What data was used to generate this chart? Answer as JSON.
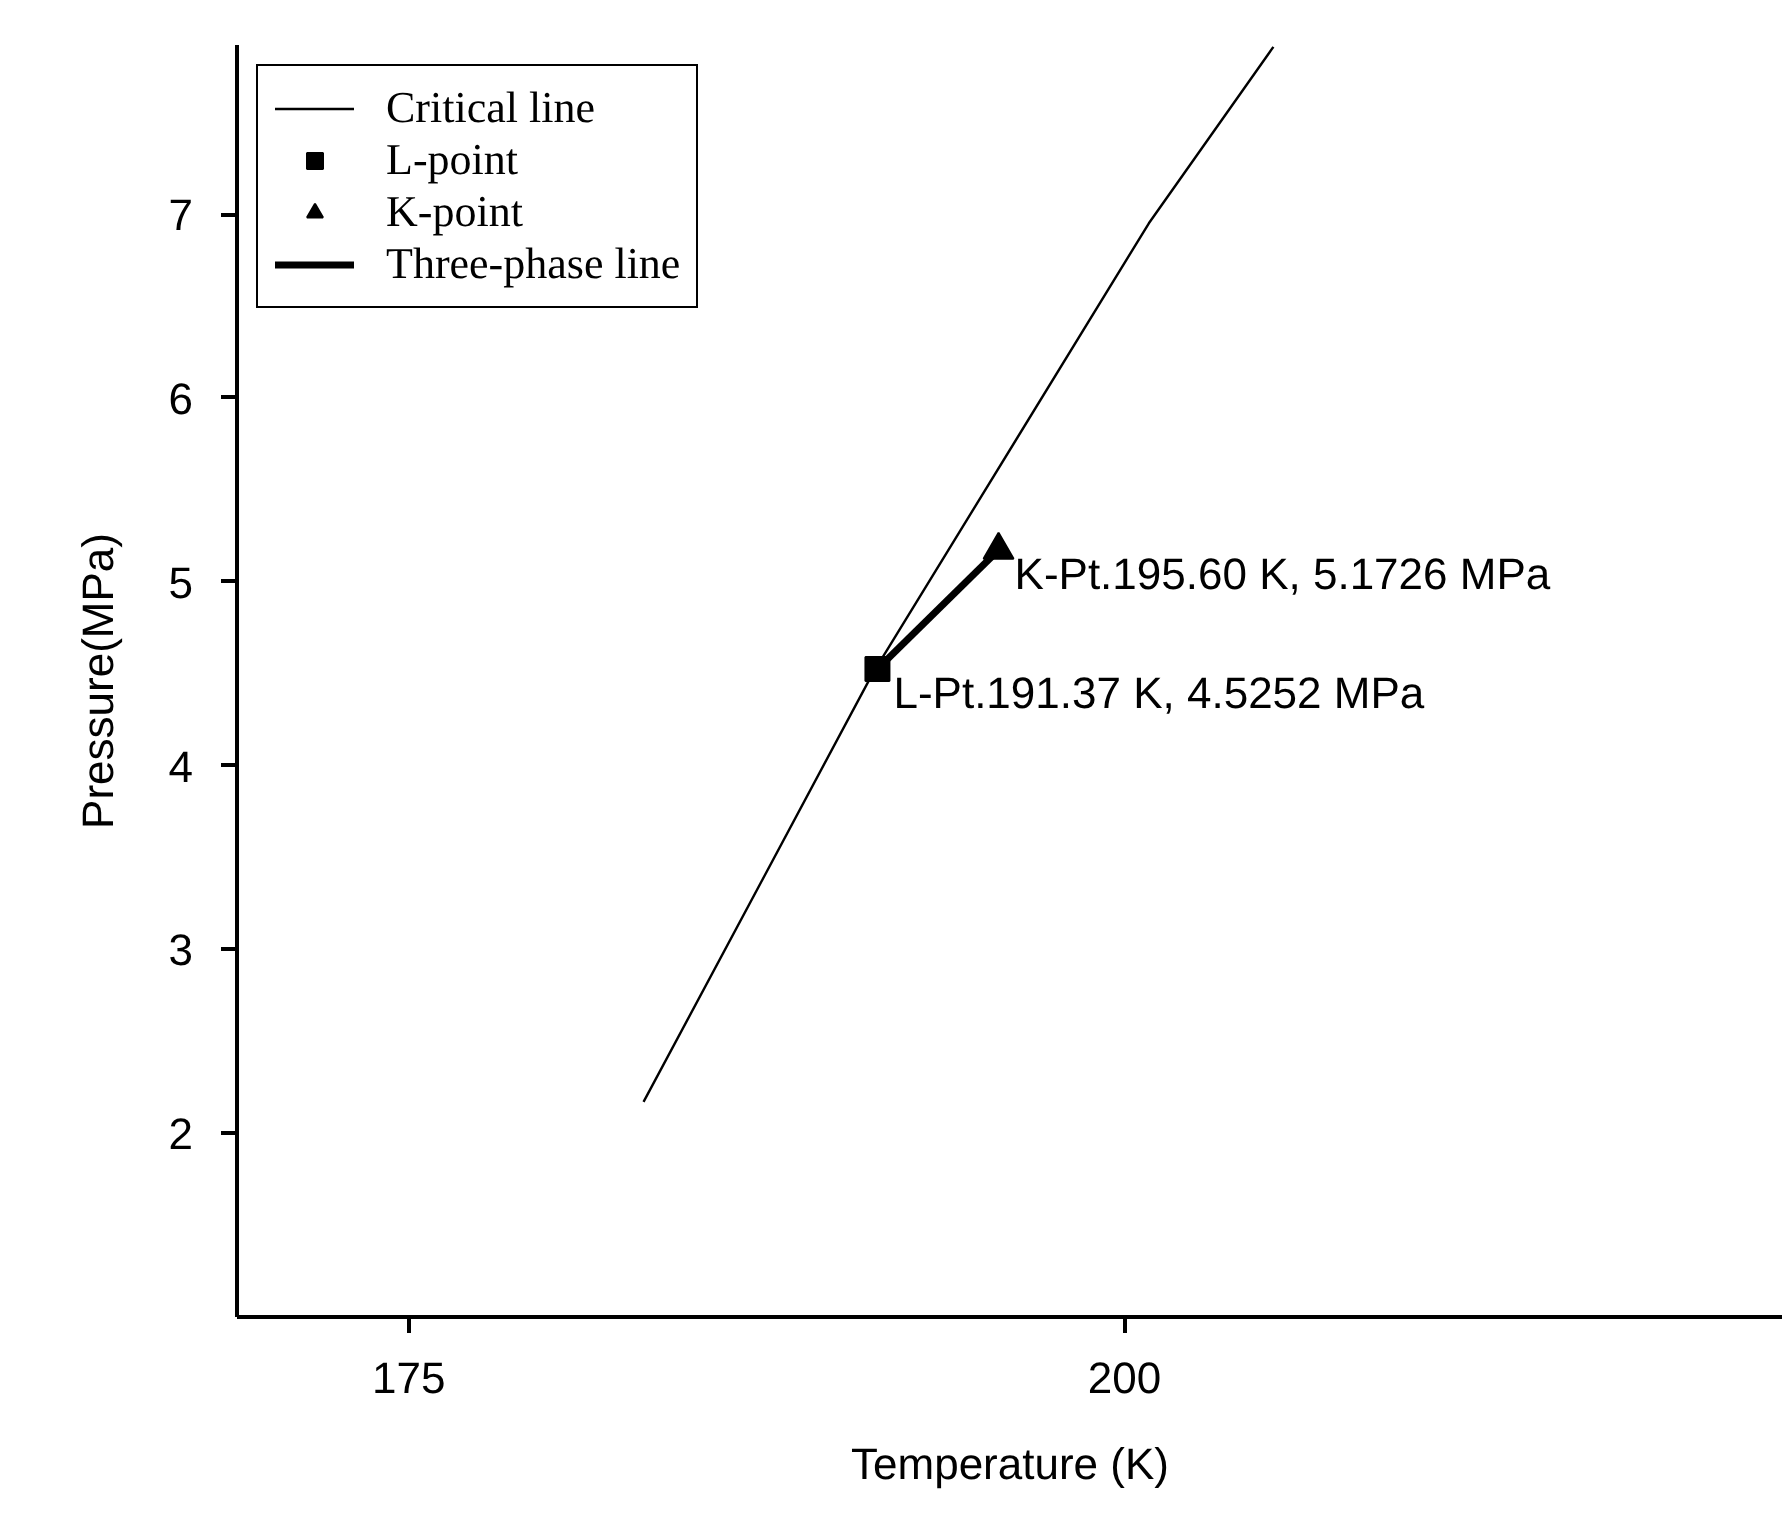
{
  "chart_data": {
    "type": "line",
    "xlabel": "Temperature (K)",
    "ylabel": "Pressure(MPa)",
    "xlim": [
      169,
      223
    ],
    "ylim": [
      1,
      7.92
    ],
    "xticks": [
      175,
      200
    ],
    "yticks": [
      2,
      3,
      4,
      5,
      6,
      7
    ],
    "grid": false,
    "legend": "top left",
    "series": [
      {
        "name": "Critical line",
        "color": "#000000",
        "line_style": "solid",
        "marker": "none",
        "x": [
          183.2,
          191.2,
          200.85,
          205.2
        ],
        "values": [
          2.17,
          4.5,
          6.95,
          7.91
        ]
      },
      {
        "name": "L-point",
        "type": "scatter",
        "color": "#000000",
        "marker": "square",
        "x": [
          191.37
        ],
        "values": [
          4.5252
        ]
      },
      {
        "name": "K-point",
        "type": "scatter",
        "color": "#000000",
        "marker": "triangle",
        "x": [
          195.6
        ],
        "values": [
          5.1726
        ]
      },
      {
        "name": "Three-phase line",
        "type": "line",
        "color": "#000000",
        "line_style": "solid",
        "marker": "none",
        "x": [
          191.37,
          195.6
        ],
        "values": [
          4.5252,
          5.1726
        ]
      }
    ],
    "annotations": [
      {
        "text": "K-Pt.195.60 K, 5.1726 MPa",
        "x": 195.6,
        "y": 5.1726
      },
      {
        "text": "L-Pt.191.37 K, 4.5252 MPa",
        "x": 191.37,
        "y": 4.5252
      }
    ]
  }
}
